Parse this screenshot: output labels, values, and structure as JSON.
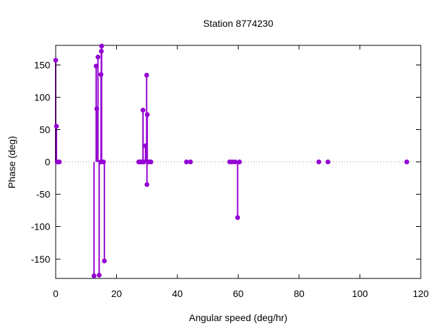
{
  "chart_data": {
    "type": "scatter",
    "style": "impulses+points",
    "title": "Station 8774230",
    "xlabel": "Angular speed (deg/hr)",
    "ylabel": "Phase (deg)",
    "xlim": [
      0,
      120
    ],
    "ylim": [
      -180,
      180
    ],
    "xticks": [
      0,
      20,
      40,
      60,
      80,
      100,
      120
    ],
    "yticks": [
      -150,
      -100,
      -50,
      0,
      50,
      100,
      150
    ],
    "grid": false,
    "legend": "none",
    "marker_color": "#9400d3",
    "frame_color": "#000000",
    "zero_line": {
      "style": "dotted",
      "color": "#909090"
    },
    "points": [
      {
        "x": 0.0,
        "y": 157
      },
      {
        "x": 0.25,
        "y": 55
      },
      {
        "x": 0.5,
        "y": 0
      },
      {
        "x": 1.2,
        "y": 0
      },
      {
        "x": 12.6,
        "y": -176
      },
      {
        "x": 13.3,
        "y": 148
      },
      {
        "x": 13.5,
        "y": 82
      },
      {
        "x": 13.9,
        "y": 162
      },
      {
        "x": 14.3,
        "y": -175
      },
      {
        "x": 14.8,
        "y": 0
      },
      {
        "x": 14.9,
        "y": 135
      },
      {
        "x": 15.0,
        "y": 171
      },
      {
        "x": 15.1,
        "y": 179
      },
      {
        "x": 15.7,
        "y": 0
      },
      {
        "x": 16.0,
        "y": -153
      },
      {
        "x": 27.3,
        "y": 0
      },
      {
        "x": 27.7,
        "y": 0
      },
      {
        "x": 28.1,
        "y": 0
      },
      {
        "x": 28.5,
        "y": 0
      },
      {
        "x": 28.7,
        "y": 80
      },
      {
        "x": 29.0,
        "y": 0
      },
      {
        "x": 29.5,
        "y": 25
      },
      {
        "x": 29.9,
        "y": 134
      },
      {
        "x": 30.0,
        "y": -35
      },
      {
        "x": 30.1,
        "y": 73
      },
      {
        "x": 30.6,
        "y": 0
      },
      {
        "x": 31.3,
        "y": 0
      },
      {
        "x": 43.0,
        "y": 0
      },
      {
        "x": 44.3,
        "y": 0
      },
      {
        "x": 57.2,
        "y": 0
      },
      {
        "x": 58.0,
        "y": 0
      },
      {
        "x": 59.0,
        "y": 0
      },
      {
        "x": 59.8,
        "y": -86
      },
      {
        "x": 60.4,
        "y": 0
      },
      {
        "x": 86.5,
        "y": 0
      },
      {
        "x": 89.5,
        "y": 0
      },
      {
        "x": 115.4,
        "y": 0
      }
    ]
  }
}
